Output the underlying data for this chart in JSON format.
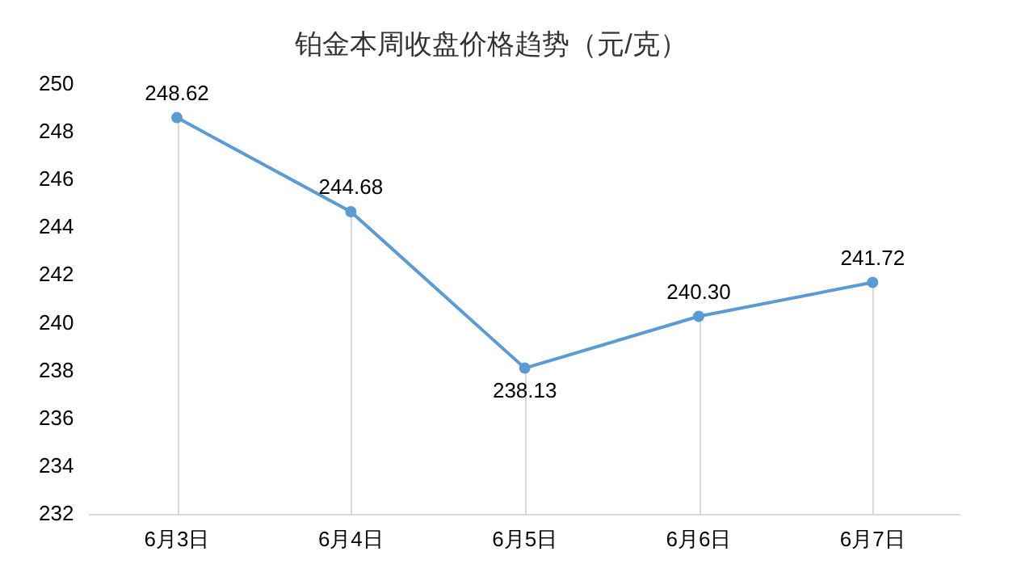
{
  "chart_data": {
    "type": "line",
    "title": "铂金本周收盘价格趋势（元/克）",
    "categories": [
      "6月3日",
      "6月4日",
      "6月5日",
      "6月6日",
      "6月7日"
    ],
    "series": [
      {
        "color": "#5b9bd5",
        "values": [
          248.62,
          244.68,
          238.13,
          240.3,
          241.72
        ],
        "value_labels": [
          "248.62",
          "244.68",
          "238.13",
          "240.30",
          "241.72"
        ]
      }
    ],
    "ylim": [
      232,
      250
    ],
    "yticks": [
      232,
      234,
      236,
      238,
      240,
      242,
      244,
      246,
      248,
      250
    ],
    "grid": "x",
    "legend": false,
    "marker": "circle",
    "line_style": "solid"
  }
}
